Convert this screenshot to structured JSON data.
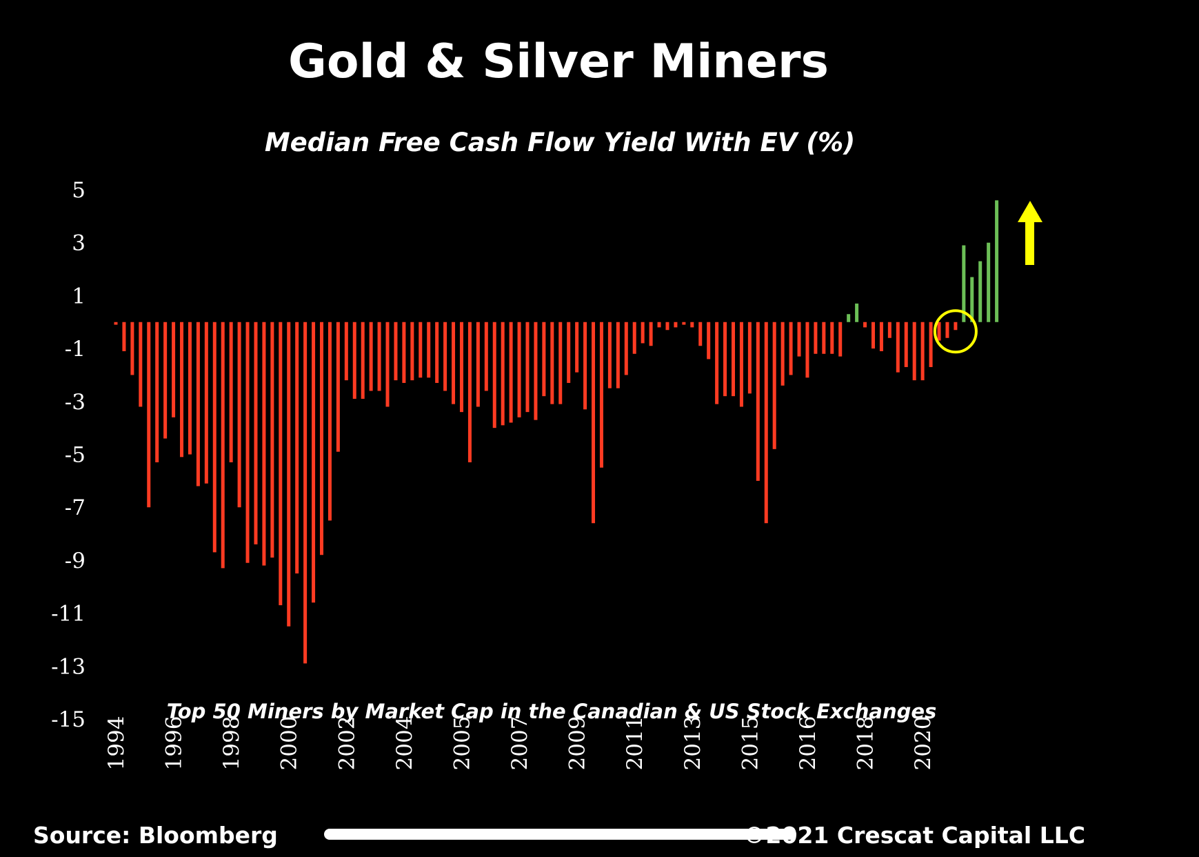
{
  "chart_data": {
    "type": "bar",
    "title": "Gold & Silver Miners",
    "subtitle": "Median Free Cash Flow Yield With EV (%)",
    "annotation": "Top 50 Miners by Market Cap in the Canadian & US Stock Exchanges",
    "source": "Source: Bloomberg",
    "copyright": "©2021 Crescat Capital LLC",
    "xlabel": "",
    "ylabel": "",
    "ylim": [
      -15,
      5
    ],
    "y_ticks": [
      5,
      3,
      1,
      -1,
      -3,
      -5,
      -7,
      -9,
      -11,
      -13,
      -15
    ],
    "x_ticks": [
      "1994",
      "1996",
      "1998",
      "2000",
      "2002",
      "2004",
      "2005",
      "2007",
      "2009",
      "2011",
      "2013",
      "2015",
      "2016",
      "2018",
      "2020"
    ],
    "x_tick_bar_index": [
      0,
      7,
      14,
      21,
      28,
      35,
      42,
      49,
      56,
      63,
      70,
      77,
      84,
      91,
      98
    ],
    "grid": false,
    "legend": "none",
    "colors": {
      "negative": "#ff3b22",
      "positive": "#6cbf57",
      "background": "#000000",
      "text": "#ffffff",
      "highlight": "#ffff00"
    },
    "highlight": {
      "type": "circle",
      "bar_index": 102,
      "arrow": "up"
    },
    "values": [
      -0.1,
      -1.1,
      -2.0,
      -3.2,
      -7.0,
      -5.3,
      -4.4,
      -3.6,
      -5.1,
      -5.0,
      -6.2,
      -6.1,
      -8.7,
      -9.3,
      -5.3,
      -7.0,
      -9.1,
      -8.4,
      -9.2,
      -8.9,
      -10.7,
      -11.5,
      -9.5,
      -12.9,
      -10.6,
      -8.8,
      -7.5,
      -4.9,
      -2.2,
      -2.9,
      -2.9,
      -2.6,
      -2.6,
      -3.2,
      -2.2,
      -2.3,
      -2.2,
      -2.1,
      -2.1,
      -2.3,
      -2.6,
      -3.1,
      -3.4,
      -5.3,
      -3.2,
      -2.6,
      -4.0,
      -3.9,
      -3.8,
      -3.6,
      -3.4,
      -3.7,
      -2.8,
      -3.1,
      -3.1,
      -2.3,
      -1.9,
      -3.3,
      -7.6,
      -5.5,
      -2.5,
      -2.5,
      -2.0,
      -1.2,
      -0.8,
      -0.9,
      -0.2,
      -0.3,
      -0.2,
      -0.1,
      -0.2,
      -0.9,
      -1.4,
      -3.1,
      -2.8,
      -2.8,
      -3.2,
      -2.7,
      -6.0,
      -7.6,
      -4.8,
      -2.4,
      -2.0,
      -1.3,
      -2.1,
      -1.2,
      -1.2,
      -1.2,
      -1.3,
      0.3,
      0.7,
      -0.2,
      -1.0,
      -1.1,
      -0.6,
      -1.9,
      -1.7,
      -2.2,
      -2.2,
      -1.7,
      -0.7,
      -0.6,
      -0.3,
      2.9,
      1.7,
      2.3,
      3.0,
      4.6
    ]
  }
}
